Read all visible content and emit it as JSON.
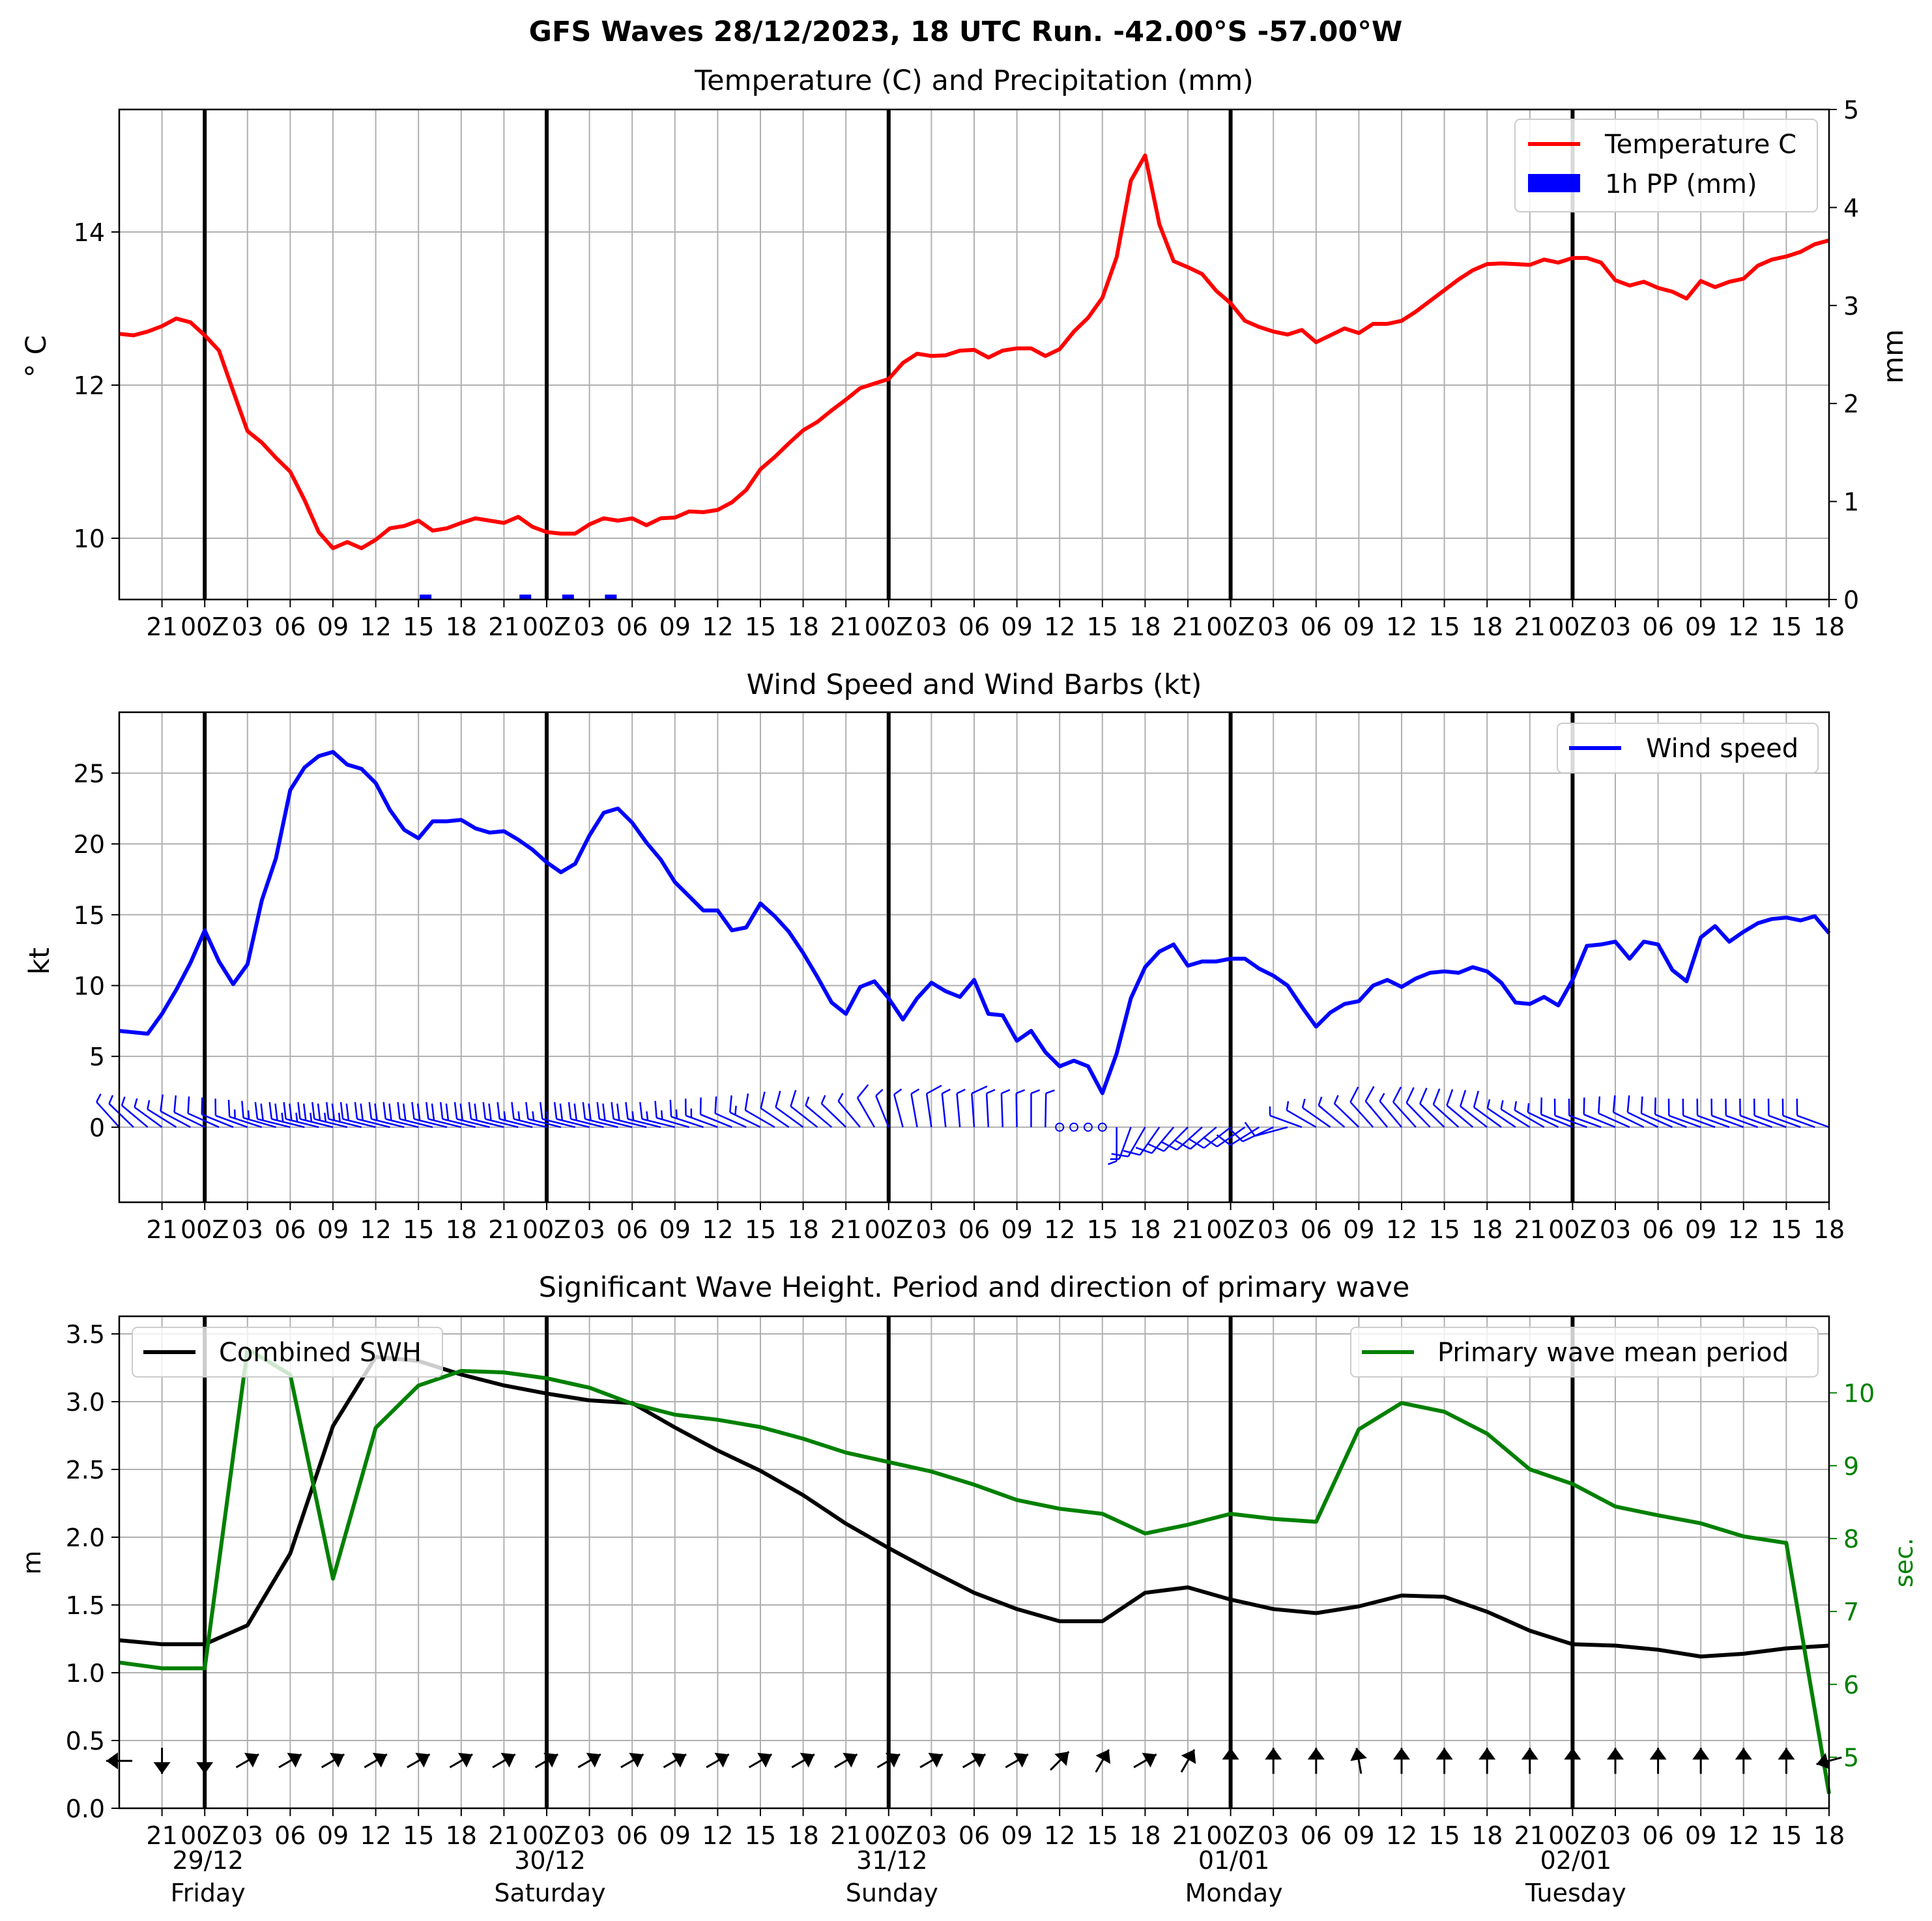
{
  "figure": {
    "title": "GFS Waves 28/12/2023, 18 UTC Run. -42.00°S -57.00°W"
  },
  "time_axis": {
    "tick_labels": [
      "21",
      "00Z",
      "03",
      "06",
      "09",
      "12",
      "15",
      "18",
      "21",
      "00Z",
      "03",
      "06",
      "09",
      "12",
      "15",
      "18",
      "21",
      "00Z",
      "03",
      "06",
      "09",
      "12",
      "15",
      "18",
      "21",
      "00Z",
      "03",
      "06",
      "09",
      "12",
      "15",
      "18",
      "21",
      "00Z",
      "03",
      "06",
      "09",
      "12",
      "15",
      "18"
    ],
    "days": [
      {
        "date": "29/12",
        "weekday": "Friday"
      },
      {
        "date": "30/12",
        "weekday": "Saturday"
      },
      {
        "date": "31/12",
        "weekday": "Sunday"
      },
      {
        "date": "01/01",
        "weekday": "Monday"
      },
      {
        "date": "02/01",
        "weekday": "Tuesday"
      }
    ]
  },
  "colors": {
    "temperature": "#ff0000",
    "precip": "#0000ff",
    "wind": "#0000ff",
    "swh": "#000000",
    "period": "#008000",
    "grid": "#b0b0b0"
  },
  "chart_data": [
    {
      "type": "line",
      "title": "Temperature (C) and Precipitation (mm)",
      "ylabel": "$^\\circ$C",
      "ylabel_display": "° C",
      "y2label": "mm",
      "x_unit": "hours since 2023-12-28 18Z",
      "xlim": [
        18,
        138
      ],
      "ylim": [
        9.2,
        15.6
      ],
      "yticks": [
        10,
        12,
        14
      ],
      "y2lim": [
        0,
        5
      ],
      "y2ticks": [
        0,
        1,
        2,
        3,
        4,
        5
      ],
      "legend": "upper right",
      "grid": true,
      "series": [
        {
          "name": "Temperature C",
          "x": [
            18,
            19,
            20,
            21,
            22,
            23,
            24,
            25,
            26,
            27,
            28,
            29,
            30,
            31,
            32,
            33,
            34,
            35,
            36,
            37,
            38,
            39,
            40,
            41,
            42,
            43,
            44,
            45,
            46,
            47,
            48,
            49,
            50,
            51,
            52,
            53,
            54,
            55,
            56,
            57,
            58,
            59,
            60,
            61,
            62,
            63,
            64,
            65,
            66,
            67,
            68,
            69,
            70,
            71,
            72,
            73,
            74,
            75,
            76,
            77,
            78,
            79,
            80,
            81,
            82,
            83,
            84,
            85,
            86,
            87,
            88,
            89,
            90,
            91,
            92,
            93,
            94,
            95,
            96,
            97,
            98,
            99,
            100,
            101,
            102,
            103,
            104,
            105,
            106,
            107,
            108,
            109,
            110,
            111,
            112,
            113,
            114,
            115,
            116,
            117,
            118,
            119,
            120,
            121,
            122,
            123,
            124,
            125,
            126,
            127,
            128,
            129,
            130,
            131,
            132,
            133,
            134,
            135,
            136,
            137,
            138
          ],
          "values": [
            12.67,
            12.65,
            12.7,
            12.77,
            12.87,
            12.82,
            12.65,
            12.45,
            11.92,
            11.4,
            11.25,
            11.05,
            10.87,
            10.5,
            10.08,
            9.87,
            9.95,
            9.87,
            9.98,
            10.13,
            10.16,
            10.23,
            10.1,
            10.13,
            10.2,
            10.26,
            10.23,
            10.2,
            10.28,
            10.15,
            10.08,
            10.06,
            10.06,
            10.18,
            10.26,
            10.23,
            10.26,
            10.17,
            10.26,
            10.27,
            10.35,
            10.34,
            10.37,
            10.47,
            10.63,
            10.9,
            11.06,
            11.24,
            11.41,
            11.52,
            11.67,
            11.81,
            11.96,
            12.02,
            12.08,
            12.29,
            12.41,
            12.38,
            12.39,
            12.45,
            12.46,
            12.36,
            12.45,
            12.48,
            12.48,
            12.38,
            12.47,
            12.7,
            12.88,
            13.14,
            13.67,
            14.67,
            15.0,
            14.1,
            13.62,
            13.54,
            13.45,
            13.23,
            13.07,
            12.84,
            12.76,
            12.7,
            12.66,
            12.72,
            12.56,
            12.65,
            12.74,
            12.68,
            12.8,
            12.8,
            12.84,
            12.96,
            13.1,
            13.24,
            13.38,
            13.5,
            13.58,
            13.59,
            13.58,
            13.57,
            13.64,
            13.6,
            13.66,
            13.66,
            13.6,
            13.37,
            13.3,
            13.35,
            13.27,
            13.22,
            13.13,
            13.36,
            13.28,
            13.35,
            13.39,
            13.56,
            13.64,
            13.68,
            13.74,
            13.84,
            13.89
          ]
        },
        {
          "name": "1h PP (mm)",
          "type": "bar",
          "axis": "y2",
          "x": [
            39.5,
            46.5,
            49.5,
            52.5
          ],
          "values": [
            0.05,
            0.05,
            0.05,
            0.05
          ]
        }
      ]
    },
    {
      "type": "line",
      "title": "Wind Speed and Wind Barbs (kt)",
      "ylabel": "kt",
      "x_unit": "hours since 2023-12-28 18Z",
      "xlim": [
        18,
        138
      ],
      "ylim": [
        -5.3,
        29.3
      ],
      "yticks": [
        0,
        5,
        10,
        15,
        20,
        25
      ],
      "legend": "upper right",
      "grid": true,
      "series": [
        {
          "name": "Wind speed",
          "x": [
            18,
            19,
            20,
            21,
            22,
            23,
            24,
            25,
            26,
            27,
            28,
            29,
            30,
            31,
            32,
            33,
            34,
            35,
            36,
            37,
            38,
            39,
            40,
            41,
            42,
            43,
            44,
            45,
            46,
            47,
            48,
            49,
            50,
            51,
            52,
            53,
            54,
            55,
            56,
            57,
            58,
            59,
            60,
            61,
            62,
            63,
            64,
            65,
            66,
            67,
            68,
            69,
            70,
            71,
            72,
            73,
            74,
            75,
            76,
            77,
            78,
            79,
            80,
            81,
            82,
            83,
            84,
            85,
            86,
            87,
            88,
            89,
            90,
            91,
            92,
            93,
            94,
            95,
            96,
            97,
            98,
            99,
            100,
            101,
            102,
            103,
            104,
            105,
            106,
            107,
            108,
            109,
            110,
            111,
            112,
            113,
            114,
            115,
            116,
            117,
            118,
            119,
            120,
            121,
            122,
            123,
            124,
            125,
            126,
            127,
            128,
            129,
            130,
            131,
            132,
            133,
            134,
            135,
            136,
            137,
            138
          ],
          "values": [
            6.8,
            6.7,
            6.6,
            8.0,
            9.7,
            11.6,
            13.9,
            11.7,
            10.1,
            11.5,
            16.0,
            19.0,
            23.8,
            25.4,
            26.2,
            26.5,
            25.6,
            25.3,
            24.3,
            22.4,
            21.0,
            20.4,
            21.6,
            21.6,
            21.7,
            21.1,
            20.8,
            20.9,
            20.3,
            19.6,
            18.7,
            18.0,
            18.6,
            20.6,
            22.2,
            22.5,
            21.5,
            20.1,
            18.9,
            17.3,
            16.3,
            15.3,
            15.3,
            13.9,
            14.1,
            15.8,
            14.9,
            13.8,
            12.3,
            10.6,
            8.8,
            8.0,
            9.9,
            10.3,
            9.1,
            7.6,
            9.1,
            10.2,
            9.6,
            9.2,
            10.4,
            8.0,
            7.9,
            6.1,
            6.8,
            5.3,
            4.3,
            4.7,
            4.3,
            2.4,
            5.2,
            9.1,
            11.3,
            12.4,
            12.9,
            11.4,
            11.7,
            11.7,
            11.9,
            11.9,
            11.2,
            10.7,
            10.0,
            8.5,
            7.1,
            8.1,
            8.7,
            8.9,
            10.0,
            10.4,
            9.9,
            10.5,
            10.9,
            11.0,
            10.9,
            11.3,
            11.0,
            10.2,
            8.8,
            8.7,
            9.2,
            8.6,
            10.4,
            12.8,
            12.9,
            13.1,
            11.9,
            13.1,
            12.9,
            11.1,
            10.3,
            13.4,
            14.2,
            13.1,
            13.8,
            14.4,
            14.7,
            14.8,
            14.6,
            14.9,
            13.7
          ]
        }
      ],
      "wind_barbs": {
        "x": [
          18,
          19,
          20,
          21,
          22,
          23,
          24,
          25,
          26,
          27,
          28,
          29,
          30,
          31,
          32,
          33,
          34,
          35,
          36,
          37,
          38,
          39,
          40,
          41,
          42,
          43,
          44,
          45,
          46,
          47,
          48,
          49,
          50,
          51,
          52,
          53,
          54,
          55,
          56,
          57,
          58,
          59,
          60,
          61,
          62,
          63,
          64,
          65,
          66,
          67,
          68,
          69,
          70,
          71,
          72,
          73,
          74,
          75,
          76,
          77,
          78,
          79,
          80,
          81,
          82,
          83,
          84,
          85,
          86,
          87,
          88,
          89,
          90,
          91,
          92,
          93,
          94,
          95,
          96,
          97,
          98,
          99,
          100,
          101,
          102,
          103,
          104,
          105,
          106,
          107,
          108,
          109,
          110,
          111,
          112,
          113,
          114,
          115,
          116,
          117,
          118,
          119,
          120,
          121,
          122,
          123,
          124,
          125,
          126,
          127,
          128,
          129,
          130,
          131,
          132,
          133,
          134,
          135,
          136,
          137,
          138
        ],
        "from_direction_deg": [
          318,
          314,
          310,
          306,
          302,
          298,
          296,
          294,
          292,
          290,
          288,
          286,
          284,
          284,
          284,
          284,
          284,
          284,
          284,
          284,
          284,
          284,
          284,
          284,
          284,
          284,
          284,
          284,
          284,
          284,
          284,
          284,
          284,
          284,
          284,
          284,
          284,
          284,
          284,
          284,
          286,
          288,
          290,
          292,
          294,
          296,
          300,
          304,
          306,
          308,
          310,
          314,
          320,
          330,
          338,
          345,
          350,
          352,
          354,
          355,
          356,
          357,
          358,
          359,
          0,
          1,
          2,
          3,
          4,
          5,
          180,
          200,
          210,
          215,
          220,
          225,
          228,
          230,
          232,
          235,
          238,
          245,
          255,
          290,
          300,
          305,
          310,
          314,
          318,
          320,
          320,
          318,
          316,
          314,
          312,
          310,
          308,
          306,
          304,
          302,
          300,
          296,
          292,
          290,
          290,
          292,
          294,
          296,
          296,
          294,
          292,
          290,
          290,
          290,
          290,
          290,
          290,
          290,
          290,
          290,
          290
        ]
      }
    },
    {
      "type": "line",
      "title": "Significant Wave Height. Period and direction of primary wave",
      "ylabel": "m",
      "y2label": "sec.",
      "x_unit": "hours since 2023-12-28 18Z",
      "xlim": [
        18,
        138
      ],
      "ylim": [
        0,
        3.63
      ],
      "yticks": [
        0.0,
        0.5,
        1.0,
        1.5,
        2.0,
        2.5,
        3.0,
        3.5
      ],
      "y2lim": [
        4.3,
        11.05
      ],
      "y2ticks": [
        5,
        6,
        7,
        8,
        9,
        10
      ],
      "legend": [
        "upper left",
        "upper right"
      ],
      "grid": true,
      "series": [
        {
          "name": "Combined SWH",
          "x": [
            18,
            21,
            24,
            27,
            30,
            33,
            36,
            39,
            42,
            45,
            48,
            51,
            54,
            57,
            60,
            63,
            66,
            69,
            72,
            75,
            78,
            81,
            84,
            87,
            90,
            93,
            96,
            99,
            102,
            105,
            108,
            111,
            114,
            117,
            120,
            123,
            126,
            129,
            132,
            135,
            138
          ],
          "values": [
            1.24,
            1.21,
            1.21,
            1.35,
            1.88,
            2.82,
            3.33,
            3.3,
            3.2,
            3.12,
            3.06,
            3.01,
            2.99,
            2.81,
            2.64,
            2.49,
            2.31,
            2.1,
            1.92,
            1.75,
            1.59,
            1.47,
            1.38,
            1.38,
            1.59,
            1.63,
            1.54,
            1.47,
            1.44,
            1.49,
            1.57,
            1.56,
            1.45,
            1.31,
            1.21,
            1.2,
            1.17,
            1.12,
            1.14,
            1.18,
            1.2
          ]
        },
        {
          "name": "Primary wave mean period",
          "axis": "y2",
          "x": [
            18,
            21,
            24,
            27,
            30,
            33,
            36,
            39,
            42,
            45,
            48,
            51,
            54,
            57,
            60,
            63,
            66,
            69,
            72,
            75,
            78,
            81,
            84,
            87,
            90,
            93,
            96,
            99,
            102,
            105,
            108,
            111,
            114,
            117,
            120,
            123,
            126,
            129,
            132,
            135,
            138
          ],
          "values": [
            6.3,
            6.22,
            6.22,
            10.6,
            10.25,
            7.45,
            9.52,
            10.1,
            10.3,
            10.28,
            10.2,
            10.07,
            9.85,
            9.7,
            9.63,
            9.53,
            9.37,
            9.18,
            9.05,
            8.92,
            8.74,
            8.53,
            8.41,
            8.34,
            8.07,
            8.19,
            8.34,
            8.27,
            8.23,
            9.5,
            9.86,
            9.74,
            9.44,
            8.95,
            8.75,
            8.44,
            8.32,
            8.21,
            8.03,
            7.94,
            4.5
          ]
        }
      ],
      "wave_direction_arrows": {
        "x": [
          18,
          21,
          24,
          27,
          30,
          33,
          36,
          39,
          42,
          45,
          48,
          51,
          54,
          57,
          60,
          63,
          66,
          69,
          72,
          75,
          78,
          81,
          84,
          87,
          90,
          93,
          96,
          99,
          102,
          105,
          108,
          111,
          114,
          117,
          120,
          123,
          126,
          129,
          132,
          135,
          138
        ],
        "toward_direction_deg": [
          270,
          180,
          180,
          60,
          60,
          60,
          60,
          60,
          60,
          60,
          60,
          60,
          60,
          60,
          60,
          60,
          60,
          60,
          60,
          60,
          60,
          60,
          45,
          30,
          60,
          30,
          0,
          0,
          0,
          350,
          0,
          0,
          0,
          0,
          0,
          0,
          0,
          0,
          0,
          0,
          255
        ]
      }
    }
  ]
}
